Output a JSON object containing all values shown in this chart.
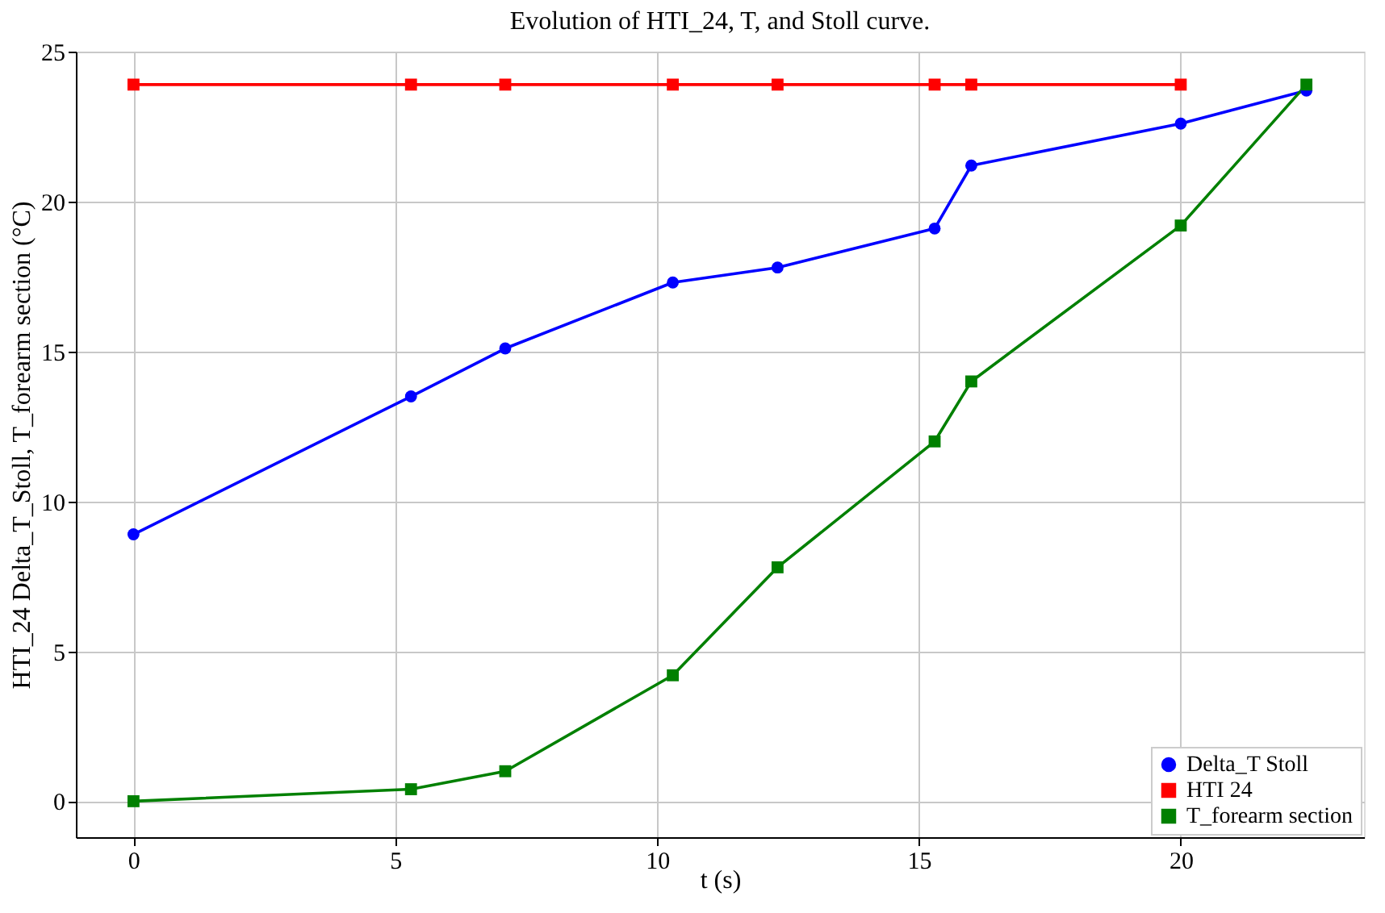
{
  "chart_data": {
    "type": "line",
    "title": "Evolution of HTI_24, T, and Stoll curve.",
    "xlabel": "t (s)",
    "ylabel": "HTI_24 Delta_T_Stoll, T_forearm section (°C)",
    "x": [
      0,
      5.3,
      7.1,
      10.3,
      12.3,
      15.3,
      16.0,
      20,
      22.4
    ],
    "series": [
      {
        "name": "Delta_T Stoll",
        "color": "#0000ff",
        "marker": "circle",
        "values": [
          8.9,
          13.5,
          15.1,
          17.3,
          17.8,
          19.1,
          21.2,
          22.6,
          23.7
        ]
      },
      {
        "name": "HTI 24",
        "color": "#ff0000",
        "marker": "square",
        "values": [
          23.9,
          23.9,
          23.9,
          23.9,
          23.9,
          23.9,
          23.9,
          23.9,
          null
        ]
      },
      {
        "name": "T_forearm section",
        "color": "#008000",
        "marker": "square",
        "values": [
          0,
          0.4,
          1.0,
          4.2,
          7.8,
          12.0,
          14.0,
          19.2,
          23.9
        ]
      }
    ],
    "xlim": [
      -1.1,
      23.5
    ],
    "ylim": [
      -1.2,
      25
    ],
    "xticks": [
      0,
      5,
      10,
      15,
      20
    ],
    "yticks": [
      0,
      5,
      10,
      15,
      20,
      25
    ],
    "grid": true,
    "legend": "bottom right",
    "line_style": "solid"
  }
}
